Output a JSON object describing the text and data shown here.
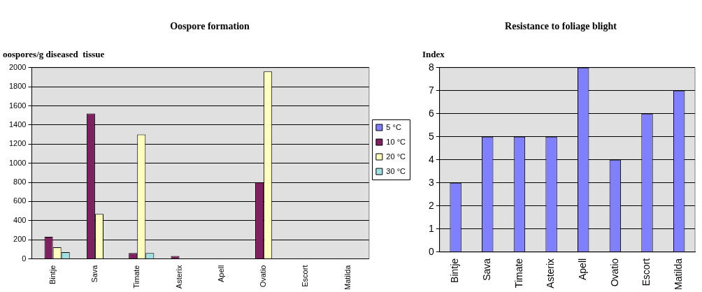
{
  "chart_data": [
    {
      "type": "bar",
      "title": "Oospore formation",
      "ylabel": "oospores/g diseased  tissue",
      "categories": [
        "Bintje",
        "Sava",
        "Timate",
        "Asterix",
        "Apell",
        "Ovatio",
        "Escort",
        "Matilda"
      ],
      "series": [
        {
          "name": "5 °C",
          "color": "#8080ff",
          "values": [
            null,
            null,
            null,
            null,
            null,
            null,
            null,
            null
          ]
        },
        {
          "name": "10 °C",
          "color": "#7f2060",
          "values": [
            230,
            1520,
            60,
            30,
            null,
            800,
            null,
            null
          ]
        },
        {
          "name": "20 °C",
          "color": "#ffffc0",
          "values": [
            120,
            470,
            1300,
            null,
            null,
            1960,
            null,
            null
          ]
        },
        {
          "name": "30 °C",
          "color": "#a0e0e0",
          "values": [
            70,
            null,
            60,
            null,
            null,
            null,
            null,
            null
          ]
        }
      ],
      "ylim": [
        0,
        2000
      ],
      "yticks": [
        0,
        200,
        400,
        600,
        800,
        1000,
        1200,
        1400,
        1600,
        1800,
        2000
      ],
      "grid": "y",
      "legend": "right"
    },
    {
      "type": "bar",
      "title": "Resistance to foliage blight",
      "ylabel": "Index",
      "categories": [
        "Bintje",
        "Sava",
        "Timate",
        "Asterix",
        "Apell",
        "Ovatio",
        "Escort",
        "Matilda"
      ],
      "values": [
        3,
        5,
        5,
        5,
        8,
        4,
        6,
        7
      ],
      "color": "#8080ff",
      "ylim": [
        0,
        8
      ],
      "yticks": [
        0,
        1,
        2,
        3,
        4,
        5,
        6,
        7,
        8
      ],
      "grid": "y"
    }
  ]
}
